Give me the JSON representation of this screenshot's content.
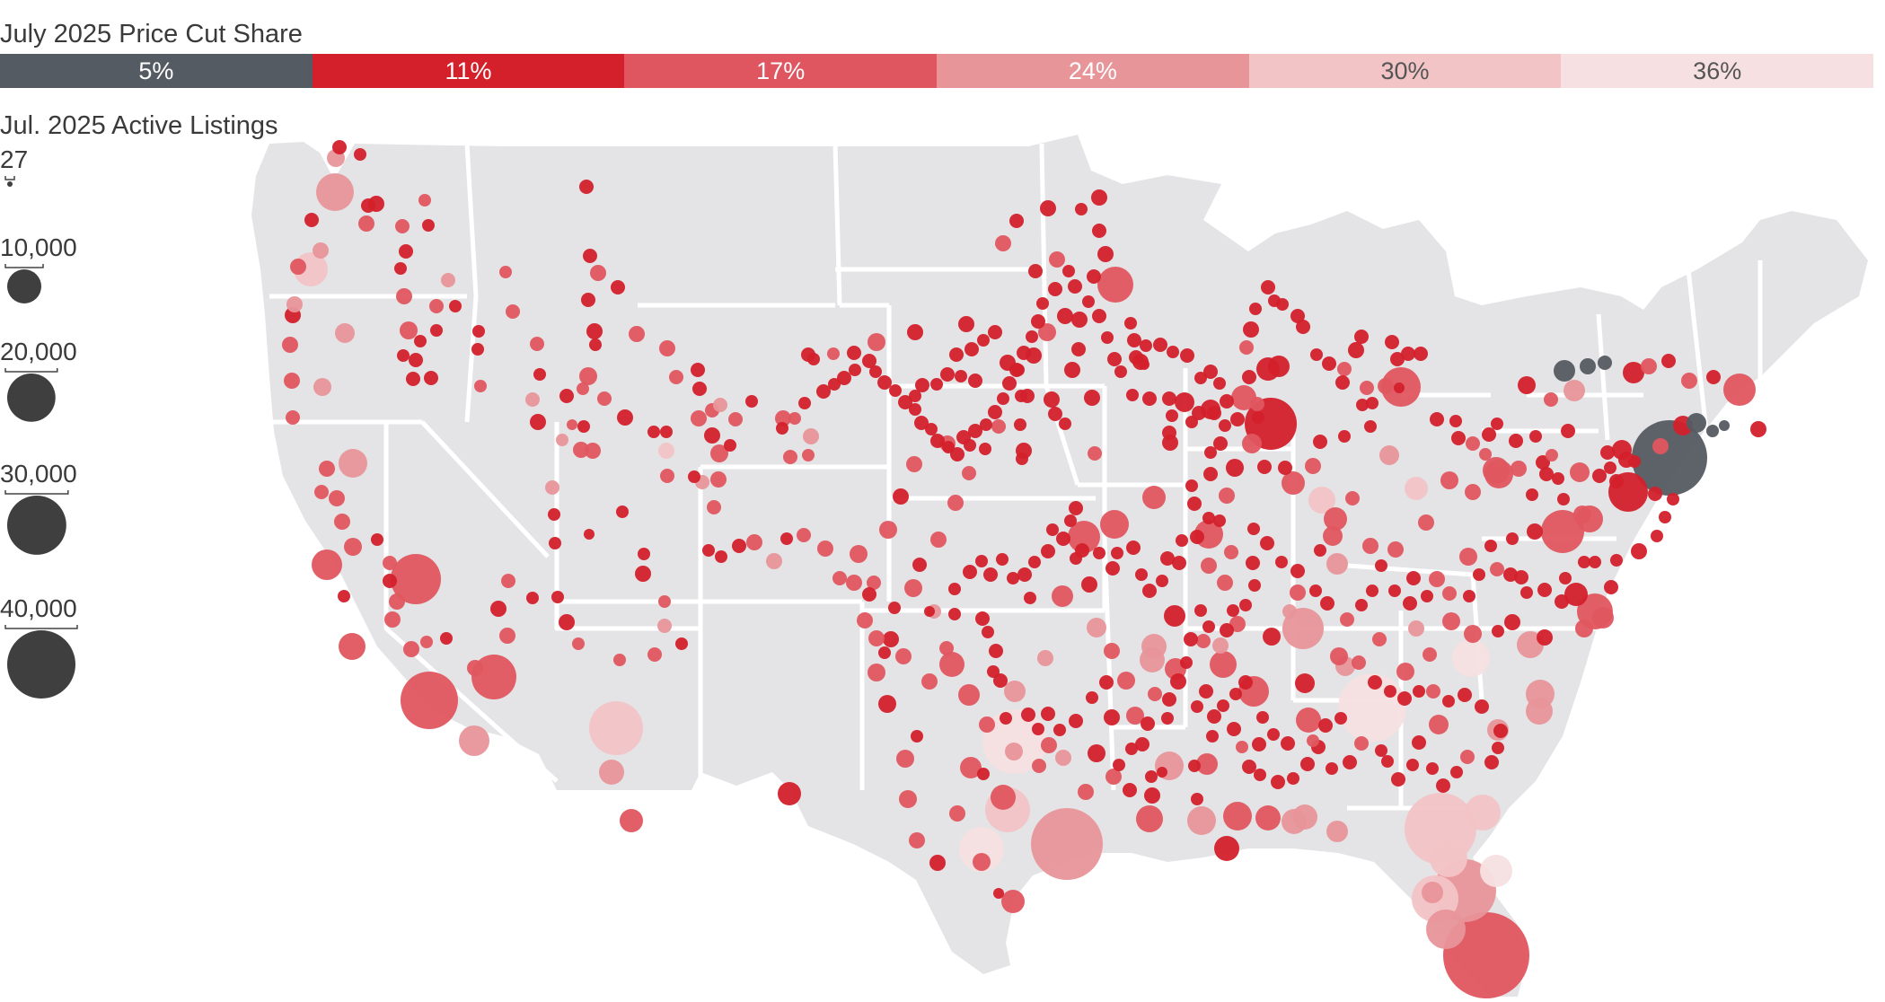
{
  "legend": {
    "title": "July 2025 Price Cut Share",
    "bins": [
      {
        "label": "5%",
        "color": "#555b62",
        "text_color": "#ffffff"
      },
      {
        "label": "11%",
        "color": "#d3202b",
        "text_color": "#ffffff"
      },
      {
        "label": "17%",
        "color": "#e05660",
        "text_color": "#ffffff"
      },
      {
        "label": "24%",
        "color": "#e8959a",
        "text_color": "#ffffff"
      },
      {
        "label": "30%",
        "color": "#f2c4c6",
        "text_color": "#555555"
      },
      {
        "label": "36%",
        "color": "#f7e0e1",
        "text_color": "#555555"
      }
    ]
  },
  "size_legend": {
    "title": "Jul. 2025 Active Listings",
    "entries": [
      {
        "label": "27",
        "value": 27
      },
      {
        "label": "10,000",
        "value": 10000
      },
      {
        "label": "20,000",
        "value": 20000
      },
      {
        "label": "30,000",
        "value": 30000
      },
      {
        "label": "40,000",
        "value": 40000
      }
    ],
    "color": "#3f3f3f"
  },
  "map": {
    "land_color": "#e4e4e6",
    "border_color": "#ffffff"
  }
}
